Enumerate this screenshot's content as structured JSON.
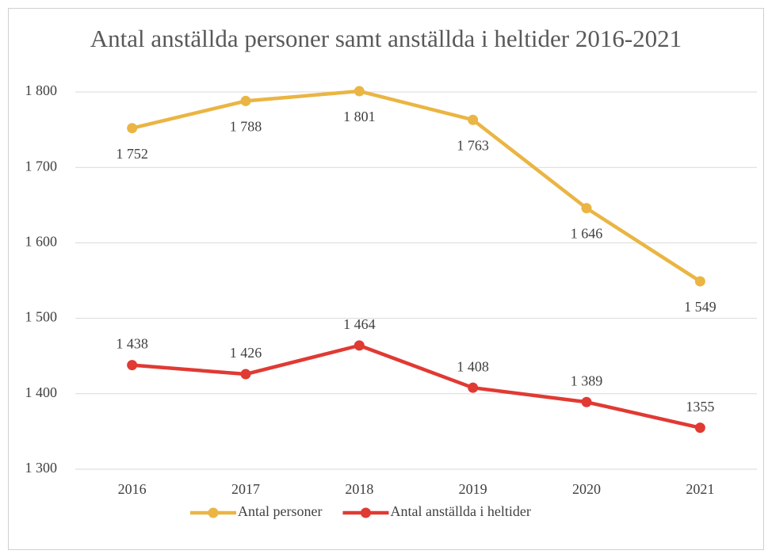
{
  "chart_data": {
    "type": "line",
    "title": "Antal anställda personer samt anställda i heltider 2016-2021",
    "categories": [
      "2016",
      "2017",
      "2018",
      "2019",
      "2020",
      "2021"
    ],
    "series": [
      {
        "name": "Antal personer",
        "color": "#eab543",
        "values": [
          1752,
          1788,
          1801,
          1763,
          1646,
          1549
        ],
        "value_labels": [
          "1 752",
          "1 788",
          "1 801",
          "1 763",
          "1 646",
          "1 549"
        ]
      },
      {
        "name": "Antal anställda i heltider",
        "color": "#e03a33",
        "values": [
          1438,
          1426,
          1464,
          1408,
          1389,
          1355
        ],
        "value_labels": [
          "1 438",
          "1 426",
          "1 464",
          "1 408",
          "1 389",
          "1355"
        ]
      }
    ],
    "ylim": [
      1300,
      1800
    ],
    "yticks": [
      {
        "value": 1300,
        "label": "1 300"
      },
      {
        "value": 1400,
        "label": "1 400"
      },
      {
        "value": 1500,
        "label": "1 500"
      },
      {
        "value": 1600,
        "label": "1 600"
      },
      {
        "value": 1700,
        "label": "1 700"
      },
      {
        "value": 1800,
        "label": "1 800"
      }
    ],
    "grid": true,
    "legend": "bottom"
  }
}
